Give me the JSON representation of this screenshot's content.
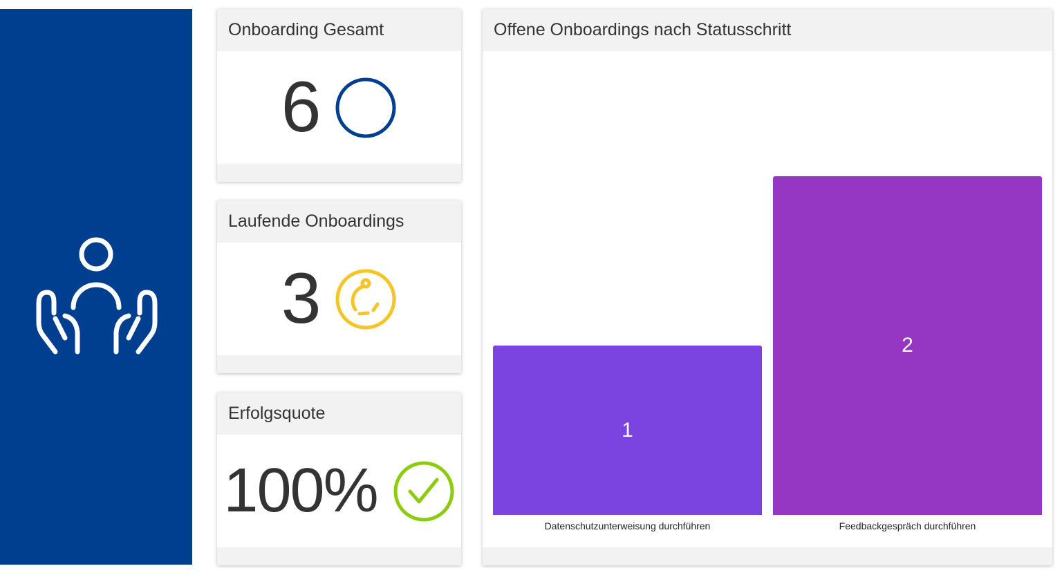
{
  "hero": {
    "icon": "person-in-hands-icon",
    "color": "#003f8f"
  },
  "kpis": [
    {
      "title": "Onboarding Gesamt",
      "value": "6",
      "icon": "circle-icon",
      "icon_color": "#003f8f"
    },
    {
      "title": "Laufende Onboardings",
      "value": "3",
      "icon": "in-progress-icon",
      "icon_color": "#f5c528"
    },
    {
      "title": "Erfolgsquote",
      "value": "100%",
      "icon": "check-circle-icon",
      "icon_color": "#8ccc0e"
    }
  ],
  "chart": {
    "title": "Offene Onboardings nach Statusschritt"
  },
  "chart_data": {
    "type": "bar",
    "title": "Offene Onboardings nach Statusschritt",
    "categories": [
      "Datenschutzunterweisung durchführen",
      "Feedbackgespräch durchführen"
    ],
    "values": [
      1,
      2
    ],
    "colors": [
      "#7b44e0",
      "#9637c4"
    ],
    "ylim": [
      0,
      2
    ],
    "grid": false,
    "data_labels": [
      "1",
      "2"
    ]
  }
}
